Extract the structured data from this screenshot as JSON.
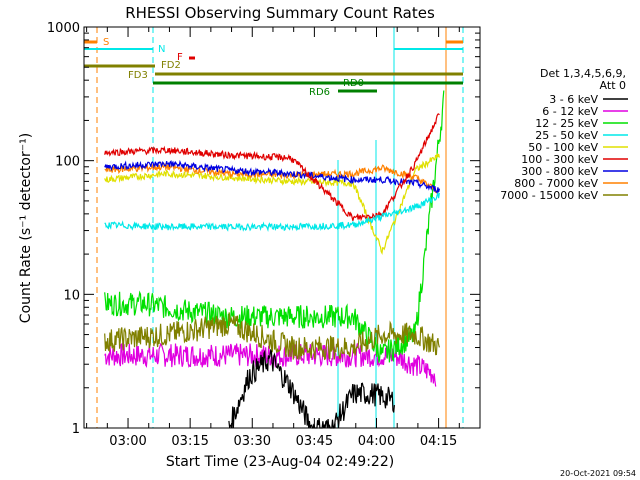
{
  "chart_data": {
    "type": "line",
    "title": "RHESSI Observing Summary Count Rates",
    "xlabel": "Start Time (23-Aug-04 02:49:22)",
    "ylabel": "Count Rate (s⁻¹ detector⁻¹)",
    "yscale": "log",
    "ylim": [
      1,
      1000
    ],
    "y_ticks": [
      "1",
      "10",
      "100",
      "1000"
    ],
    "xlim": [
      "02:49:22",
      "04:25:00"
    ],
    "x_ticks": [
      "03:00",
      "03:15",
      "03:30",
      "03:45",
      "04:00",
      "04:15"
    ],
    "legend_position": "right",
    "legend_title_lines": [
      "Det 1,3,4,5,6,9,",
      "Att 0"
    ],
    "series": [
      {
        "name": "3 - 6 keV",
        "color": "#000000",
        "x_minutes": [
          35,
          40,
          45,
          50,
          55,
          60,
          65,
          70,
          75
        ],
        "y": [
          1,
          2.5,
          3.3,
          2.0,
          1,
          1,
          1.8,
          1.8,
          1.6
        ]
      },
      {
        "name": "6 - 12 keV",
        "color": "#e000e0",
        "x_minutes": [
          5,
          15,
          25,
          35,
          45,
          55,
          65,
          75,
          85
        ],
        "y": [
          3.5,
          3.5,
          3.5,
          3.5,
          3.5,
          3.5,
          3.5,
          3.5,
          2.5
        ]
      },
      {
        "name": "12 - 25 keV",
        "color": "#00e000",
        "x_minutes": [
          5,
          15,
          25,
          35,
          45,
          55,
          65,
          72,
          80,
          87
        ],
        "y": [
          8.5,
          8.5,
          7.5,
          6.8,
          6.8,
          6.8,
          6.8,
          3.5,
          5,
          300
        ]
      },
      {
        "name": "25 - 50 keV",
        "color": "#00e8e8",
        "x_minutes": [
          5,
          20,
          35,
          50,
          65,
          80,
          86
        ],
        "y": [
          33,
          32,
          32,
          32,
          33,
          45,
          55
        ]
      },
      {
        "name": "50 - 100 keV",
        "color": "#e0e000",
        "x_minutes": [
          5,
          20,
          35,
          50,
          65,
          72,
          80,
          86
        ],
        "y": [
          72,
          80,
          75,
          70,
          68,
          21,
          85,
          110
        ]
      },
      {
        "name": "100 - 300 keV",
        "color": "#e00000",
        "x_minutes": [
          5,
          20,
          35,
          50,
          65,
          72,
          80,
          86
        ],
        "y": [
          115,
          120,
          110,
          105,
          37,
          40,
          95,
          230
        ]
      },
      {
        "name": "300 - 800 keV",
        "color": "#0000e0",
        "x_minutes": [
          5,
          20,
          35,
          50,
          65,
          72,
          80,
          86
        ],
        "y": [
          90,
          95,
          85,
          80,
          72,
          72,
          68,
          60
        ]
      },
      {
        "name": "800 - 7000 keV",
        "color": "#ff8000",
        "x_minutes": [
          5,
          20,
          35,
          50,
          65,
          72,
          80,
          86
        ],
        "y": [
          85,
          90,
          80,
          78,
          80,
          88,
          75,
          58
        ]
      },
      {
        "name": "7000 - 15000 keV",
        "color": "#808000",
        "x_minutes": [
          5,
          20,
          35,
          50,
          65,
          72,
          80,
          86
        ],
        "y": [
          4.5,
          5,
          6,
          4,
          4,
          5,
          5,
          4
        ]
      }
    ],
    "flag_bars": [
      {
        "label": "S",
        "color": "#ff8000"
      },
      {
        "label": "N",
        "color": "#00e8e8"
      },
      {
        "label": "F",
        "color": "#e00000"
      },
      {
        "label": "FD2",
        "color": "#808000"
      },
      {
        "label": "FD3",
        "color": "#808000"
      },
      {
        "label": "RD0",
        "color": "#008000"
      },
      {
        "label": "RD6",
        "color": "#008000"
      }
    ]
  },
  "footer": {
    "timestamp": "20-Oct-2021 09:54"
  }
}
